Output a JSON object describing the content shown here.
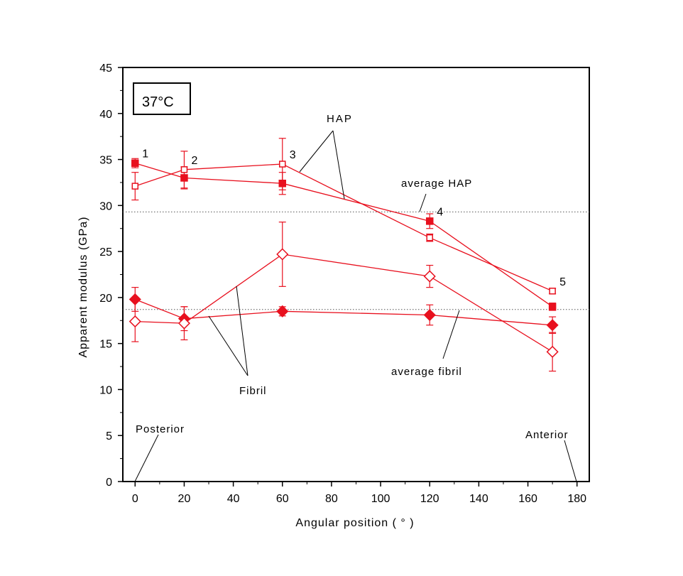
{
  "chart_data": {
    "type": "scatter",
    "title": "",
    "condition_label": "37°C",
    "condition_value": "37",
    "condition_unit": "°C",
    "xlabel": "Angular position ( ° )",
    "ylabel": "Apparent modulus (GPa)",
    "xlim": [
      -5,
      185
    ],
    "ylim": [
      0,
      45
    ],
    "xticks": [
      0,
      20,
      40,
      60,
      80,
      100,
      120,
      140,
      160,
      180
    ],
    "yticks": [
      0,
      5,
      10,
      15,
      20,
      25,
      30,
      35,
      40,
      45
    ],
    "grid": false,
    "series": [
      {
        "group": "HAP",
        "style": "filled-square",
        "color": "#e8101e",
        "x": [
          0,
          20,
          60,
          120,
          170
        ],
        "y": [
          34.6,
          33.0,
          32.4,
          28.3,
          19.0
        ],
        "err": [
          0.5,
          1.2,
          1.2,
          0.8,
          0.4
        ]
      },
      {
        "group": "HAP",
        "style": "open-square",
        "color": "#e8101e",
        "x": [
          0,
          20,
          60,
          120,
          170
        ],
        "y": [
          32.1,
          33.9,
          34.5,
          26.5,
          20.7
        ],
        "err": [
          1.5,
          2.0,
          2.8,
          0.4,
          0.3
        ]
      },
      {
        "group": "Fibril",
        "style": "filled-diamond",
        "color": "#e8101e",
        "x": [
          0,
          20,
          60,
          120,
          170
        ],
        "y": [
          19.8,
          17.7,
          18.5,
          18.1,
          17.0
        ],
        "err": [
          1.3,
          1.3,
          0.5,
          1.1,
          0.9
        ]
      },
      {
        "group": "Fibril",
        "style": "open-diamond",
        "color": "#e8101e",
        "x": [
          0,
          20,
          60,
          120,
          170
        ],
        "y": [
          17.4,
          17.2,
          24.7,
          22.3,
          14.1
        ],
        "err": [
          2.2,
          1.8,
          3.5,
          1.2,
          2.1
        ]
      }
    ],
    "reference_lines": [
      {
        "label": "average HAP",
        "y": 29.3
      },
      {
        "label": "average fibril",
        "y": 18.7
      }
    ],
    "point_labels": [
      {
        "text": "1",
        "x": 0,
        "y": 34.6
      },
      {
        "text": "2",
        "x": 20,
        "y": 33.9
      },
      {
        "text": "3",
        "x": 60,
        "y": 34.5
      },
      {
        "text": "4",
        "x": 120,
        "y": 28.3
      },
      {
        "text": "5",
        "x": 170,
        "y": 20.7
      }
    ],
    "annotations": {
      "hap": "HAP",
      "fibril": "Fibril",
      "average_hap": "average HAP",
      "average_fibril": "average fibril",
      "posterior": "Posterior",
      "anterior": "Anterior"
    }
  }
}
